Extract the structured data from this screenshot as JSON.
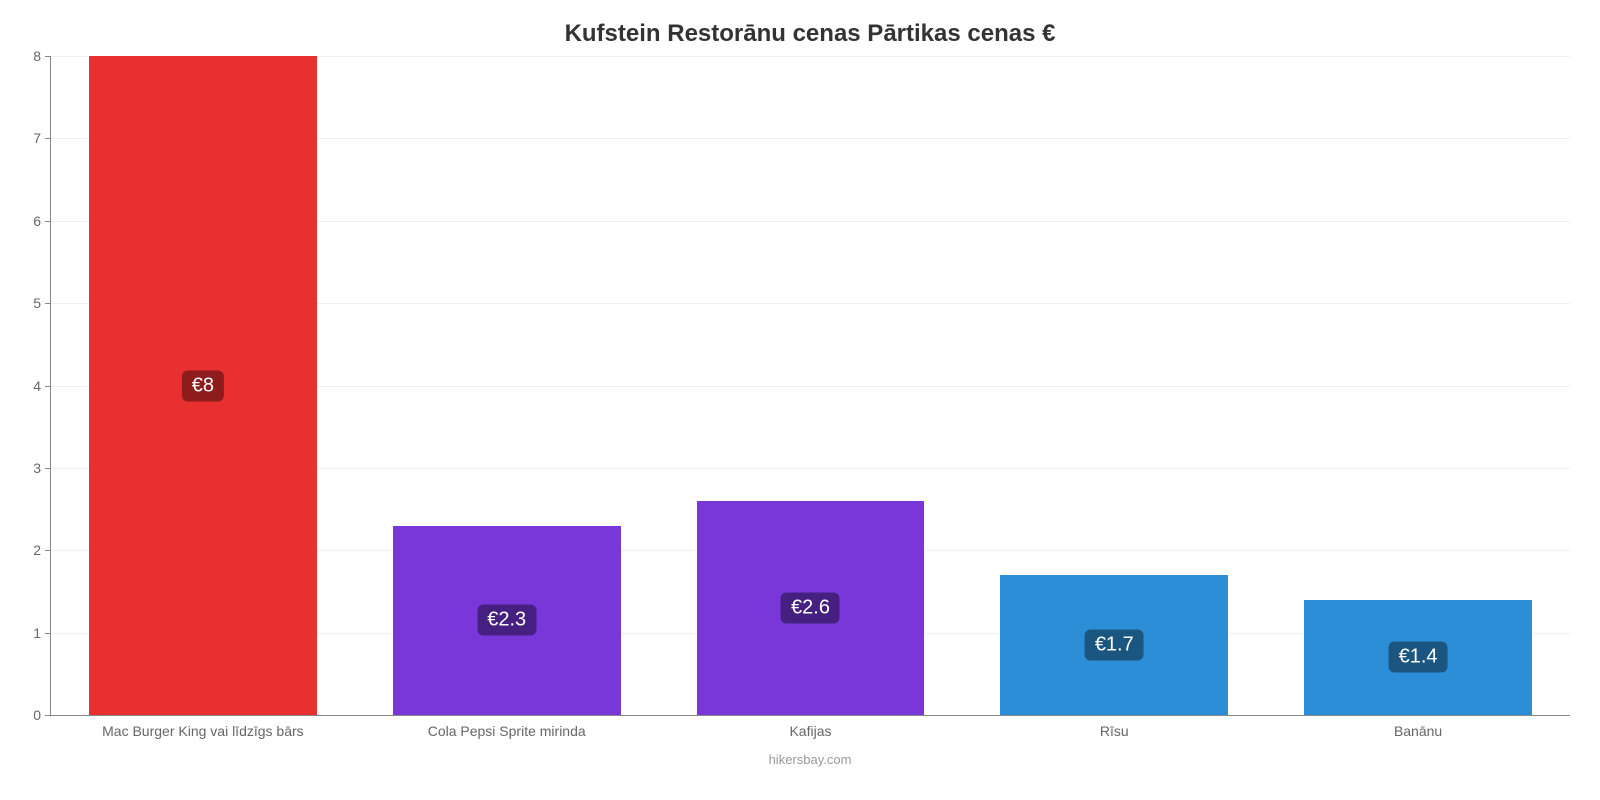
{
  "chart": {
    "type": "bar",
    "title": "Kufstein Restorānu cenas Pārtikas cenas €",
    "title_fontsize": 24,
    "title_color": "#333333",
    "credit": "hikersbay.com",
    "credit_color": "#999999",
    "background_color": "#ffffff",
    "grid_color": "#f0f0f0",
    "axis_color": "#888888",
    "tick_label_color": "#666666",
    "tick_fontsize": 14,
    "ylim": [
      0,
      8
    ],
    "ytick_step": 1,
    "yticks": [
      0,
      1,
      2,
      3,
      4,
      5,
      6,
      7,
      8
    ],
    "bar_width_ratio": 0.75,
    "categories": [
      "Mac Burger King vai līdzīgs bārs",
      "Cola Pepsi Sprite mirinda",
      "Kafijas",
      "Rīsu",
      "Banānu"
    ],
    "values": [
      8,
      2.3,
      2.6,
      1.7,
      1.4
    ],
    "value_labels": [
      "€8",
      "€2.3",
      "€2.6",
      "€1.7",
      "€1.4"
    ],
    "bar_colors": [
      "#e7302f",
      "#7936d8",
      "#7936d8",
      "#2c8ed6",
      "#2c8ed6"
    ],
    "label_bg_colors": [
      "#8e1c1c",
      "#462080",
      "#462080",
      "#1a5680",
      "#1a5680"
    ],
    "label_text_color": "#ffffff",
    "label_fontsize": 20
  }
}
